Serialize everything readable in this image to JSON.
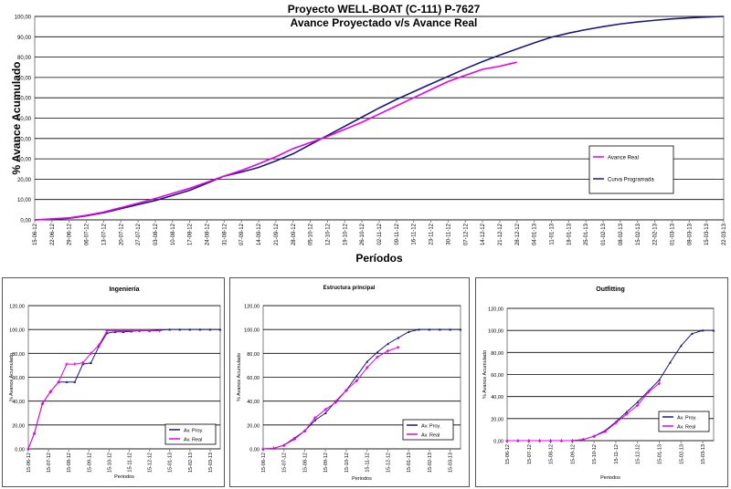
{
  "colors": {
    "projected": "#1a1a7a",
    "real": "#e600e6",
    "grid": "#000000",
    "axis": "#808080"
  },
  "chart_data": [
    {
      "id": "main",
      "type": "line",
      "title": "Proyecto WELL-BOAT (C-111) P-7627",
      "subtitle": "Avance Proyectado v/s Avance Real",
      "xlabel": "Períodos",
      "ylabel": "% Avance Acumulado",
      "ylim": [
        0,
        100
      ],
      "yticks": [
        "0,00",
        "10,00",
        "20,00",
        "30,00",
        "40,00",
        "50,00",
        "60,00",
        "70,00",
        "80,00",
        "90,00",
        "100,00"
      ],
      "xticks": [
        "15-06-12",
        "22-06-12",
        "29-06-12",
        "06-07-12",
        "13-07-12",
        "20-07-12",
        "27-07-12",
        "03-08-12",
        "10-08-12",
        "17-08-12",
        "24-08-12",
        "31-08-12",
        "07-09-12",
        "14-09-12",
        "21-09-12",
        "28-09-12",
        "05-10-12",
        "12-10-12",
        "19-10-12",
        "26-10-12",
        "02-11-12",
        "09-11-12",
        "16-11-12",
        "23-11-12",
        "30-11-12",
        "07-12-12",
        "14-12-12",
        "21-12-12",
        "28-12-12",
        "04-01-13",
        "11-01-13",
        "18-01-13",
        "25-01-13",
        "01-02-13",
        "08-02-13",
        "15-02-13",
        "22-02-13",
        "01-03-13",
        "08-03-13",
        "15-03-13",
        "22-03-13"
      ],
      "legend": [
        "Avance Real",
        "Curva Programada"
      ],
      "legend_position": "right",
      "grid": true,
      "series": [
        {
          "name": "Curva Programada",
          "x_index": [
            0,
            1,
            2,
            3,
            4,
            5,
            6,
            7,
            8,
            9,
            10,
            11,
            12,
            13,
            14,
            15,
            16,
            17,
            18,
            19,
            20,
            21,
            22,
            23,
            24,
            25,
            26,
            27,
            28,
            29,
            30,
            31,
            32,
            33,
            34,
            35,
            36,
            37,
            38,
            39,
            40
          ],
          "values": [
            0,
            0.3,
            0.8,
            2,
            3.5,
            5.5,
            7.5,
            9.5,
            12,
            14.5,
            18,
            21.5,
            23.5,
            25.8,
            29,
            32.5,
            37,
            41.5,
            46,
            50.5,
            55,
            59.2,
            63,
            66.8,
            70.5,
            74.3,
            77.8,
            81,
            84,
            87,
            89.8,
            91.8,
            93.5,
            95,
            96.3,
            97.3,
            98.1,
            98.8,
            99.3,
            99.7,
            100
          ]
        },
        {
          "name": "Avance Real",
          "x_index": [
            0,
            1,
            2,
            3,
            4,
            5,
            6,
            7,
            8,
            9,
            10,
            11,
            12,
            13,
            14,
            15,
            16,
            17,
            18,
            19,
            20,
            21,
            22,
            23,
            24,
            25,
            26,
            27,
            28
          ],
          "values": [
            0,
            0.5,
            1,
            2.2,
            3.8,
            6,
            8.2,
            10.5,
            13,
            15.5,
            18.5,
            21.5,
            24.3,
            27.5,
            31,
            35,
            38,
            41,
            44.5,
            48,
            52,
            56,
            60,
            64,
            68,
            71,
            74,
            75.5,
            77.5
          ]
        }
      ]
    },
    {
      "id": "ingenieria",
      "type": "line",
      "title": "Ingeniería",
      "xlabel": "Periodos",
      "ylabel": "% Avance Acumulado",
      "ylim": [
        0,
        120
      ],
      "yticks": [
        "0,00",
        "20,00",
        "40,00",
        "60,00",
        "80,00",
        "100,00",
        "120,00"
      ],
      "xticks": [
        "15-06-12",
        "15-07-12",
        "15-08-12",
        "15-09-12",
        "15-10-12",
        "15-11-12",
        "15-12-12",
        "15-01-13",
        "15-02-13",
        "15-03-13"
      ],
      "legend": [
        "Av. Proy.",
        "Av. Real"
      ],
      "legend_position": "bottom-right",
      "grid": true,
      "series": [
        {
          "name": "Av. Proy.",
          "x": [
            0,
            0.3,
            0.7,
            1.1,
            1.5,
            1.9,
            2.3,
            2.7,
            3.1,
            3.5,
            3.9,
            4.3,
            4.7,
            5.1,
            5.5,
            6,
            6.5,
            7,
            7.5,
            8,
            8.5,
            9,
            9.5
          ],
          "values": [
            0,
            13,
            38,
            48,
            56,
            56,
            56,
            71,
            72,
            86,
            97,
            98,
            98,
            98.5,
            99,
            99,
            99.5,
            100,
            100,
            100,
            100,
            100,
            100
          ]
        },
        {
          "name": "Av. Real",
          "x": [
            0,
            0.3,
            0.7,
            1.1,
            1.5,
            1.9,
            2.3,
            2.7,
            3.1,
            3.5,
            3.9,
            4.3,
            4.7,
            5.1,
            5.5,
            6,
            6.5
          ],
          "values": [
            0,
            13,
            38,
            48,
            56,
            71,
            71,
            72,
            80,
            87,
            99,
            99,
            99,
            99,
            99,
            99,
            99
          ]
        }
      ]
    },
    {
      "id": "estructura",
      "type": "line",
      "title": "Estructura principal",
      "xlabel": "Periodos",
      "ylabel": "% Avance Acumulado",
      "ylim": [
        0,
        120
      ],
      "yticks": [
        "0,00",
        "20,00",
        "40,00",
        "60,00",
        "80,00",
        "100,00",
        "120,00"
      ],
      "xticks": [
        "15-06-12",
        "15-07-12",
        "15-08-12",
        "15-09-12",
        "15-10-12",
        "15-11-12",
        "15-12-12",
        "15-01-13",
        "15-02-13",
        "15-03-13"
      ],
      "legend": [
        "Av. Proy.",
        "Av. Real"
      ],
      "legend_position": "bottom-right",
      "grid": true,
      "series": [
        {
          "name": "Av. Proy.",
          "x": [
            0,
            0.5,
            1,
            1.5,
            2,
            2.5,
            3,
            3.5,
            4,
            4.5,
            5,
            5.5,
            6,
            6.5,
            7,
            7.5,
            8,
            8.5,
            9,
            9.5
          ],
          "values": [
            0,
            0.5,
            3,
            9,
            15,
            24,
            30,
            40,
            49,
            61,
            73,
            81,
            88,
            93,
            98,
            100,
            100,
            100,
            100,
            100
          ]
        },
        {
          "name": "Av. Real",
          "x": [
            0,
            0.5,
            1,
            1.5,
            2,
            2.5,
            3,
            3.5,
            4,
            4.5,
            5,
            5.5,
            6,
            6.5
          ],
          "values": [
            0,
            0.5,
            3,
            8,
            15,
            26,
            33,
            39,
            49,
            57,
            68,
            77,
            82,
            85
          ]
        }
      ]
    },
    {
      "id": "outfitting",
      "type": "line",
      "title": "Outfitting",
      "xlabel": "Periodos",
      "ylabel": "% Avance Acumulado",
      "ylim": [
        0,
        120
      ],
      "yticks": [
        "0,00",
        "20,00",
        "40,00",
        "60,00",
        "80,00",
        "100,00",
        "120,00"
      ],
      "xticks": [
        "15-06-12",
        "15-07-12",
        "15-08-12",
        "15-09-12",
        "15-10-12",
        "15-11-12",
        "15-12-12",
        "15-01-13",
        "15-02-13",
        "15-03-13"
      ],
      "legend": [
        "Av. Proy.",
        "Av. Real"
      ],
      "legend_position": "bottom-right",
      "grid": true,
      "series": [
        {
          "name": "Av. Proy.",
          "x": [
            0,
            0.5,
            1,
            1.5,
            2,
            2.5,
            3,
            3.5,
            4,
            4.5,
            5,
            5.5,
            6,
            6.5,
            7,
            7.5,
            8,
            8.5,
            9,
            9.5
          ],
          "values": [
            0,
            0,
            0,
            0,
            0,
            0,
            0,
            1,
            4,
            9,
            17,
            26,
            35,
            45,
            55,
            71,
            86,
            97,
            100,
            100
          ]
        },
        {
          "name": "Av. Real",
          "x": [
            0,
            0.5,
            1,
            1.5,
            2,
            2.5,
            3,
            3.5,
            4,
            4.5,
            5,
            5.5,
            6,
            6.5,
            7
          ],
          "values": [
            0,
            0,
            0,
            0,
            0,
            0,
            0,
            1,
            4,
            8,
            16,
            24,
            32,
            44,
            52
          ]
        }
      ]
    }
  ]
}
